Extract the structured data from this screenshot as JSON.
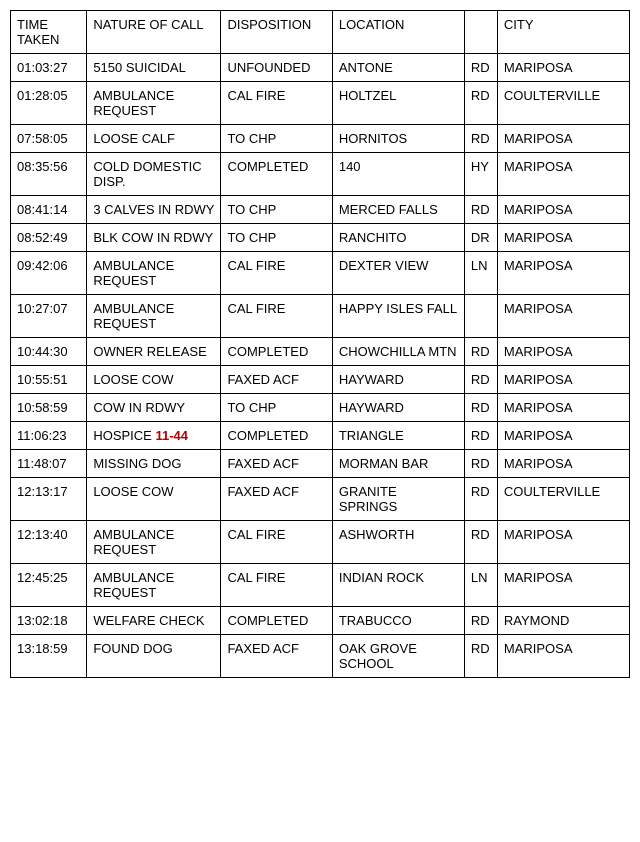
{
  "table": {
    "columns": [
      {
        "key": "time",
        "label": "TIME TAKEN",
        "class": "col-time"
      },
      {
        "key": "nature",
        "label": "NATURE OF CALL",
        "class": "col-nature"
      },
      {
        "key": "disposition",
        "label": "DISPOSITION",
        "class": "col-disp"
      },
      {
        "key": "location",
        "label": "LOCATION",
        "class": "col-loc"
      },
      {
        "key": "suffix",
        "label": "",
        "class": "col-suffix"
      },
      {
        "key": "city",
        "label": "CITY",
        "class": "col-city"
      }
    ],
    "rows": [
      {
        "time": "01:03:27",
        "nature": "5150 SUICIDAL",
        "disposition": "UNFOUNDED",
        "location": "ANTONE",
        "suffix": "RD",
        "city": "MARIPOSA"
      },
      {
        "time": "01:28:05",
        "nature": "AMBULANCE REQUEST",
        "disposition": "CAL FIRE",
        "location": "HOLTZEL",
        "suffix": "RD",
        "city": "COULTERVILLE"
      },
      {
        "time": "07:58:05",
        "nature": "LOOSE CALF",
        "disposition": "TO CHP",
        "location": "HORNITOS",
        "suffix": "RD",
        "city": "MARIPOSA"
      },
      {
        "time": "08:35:56",
        "nature": "COLD DOMESTIC DISP.",
        "disposition": "COMPLETED",
        "location": "140",
        "suffix": "HY",
        "city": "MARIPOSA"
      },
      {
        "time": "08:41:14",
        "nature": "3 CALVES IN RDWY",
        "disposition": "TO CHP",
        "location": "MERCED FALLS",
        "suffix": "RD",
        "city": "MARIPOSA"
      },
      {
        "time": "08:52:49",
        "nature": "BLK COW IN RDWY",
        "disposition": "TO CHP",
        "location": "RANCHITO",
        "suffix": "DR",
        "city": "MARIPOSA"
      },
      {
        "time": "09:42:06",
        "nature": "AMBULANCE REQUEST",
        "disposition": "CAL FIRE",
        "location": "DEXTER VIEW",
        "suffix": "LN",
        "city": "MARIPOSA"
      },
      {
        "time": "10:27:07",
        "nature": "AMBULANCE REQUEST",
        "disposition": "CAL FIRE",
        "location": "HAPPY ISLES FALL",
        "suffix": "",
        "city": "MARIPOSA"
      },
      {
        "time": "10:44:30",
        "nature": "OWNER RELEASE",
        "disposition": "COMPLETED",
        "location": "CHOWCHILLA MTN",
        "suffix": "RD",
        "city": "MARIPOSA"
      },
      {
        "time": "10:55:51",
        "nature": "LOOSE COW",
        "disposition": "FAXED ACF",
        "location": "HAYWARD",
        "suffix": "RD",
        "city": "MARIPOSA"
      },
      {
        "time": "10:58:59",
        "nature": "COW IN RDWY",
        "disposition": "TO CHP",
        "location": "HAYWARD",
        "suffix": "RD",
        "city": "MARIPOSA"
      },
      {
        "time": "11:06:23",
        "nature": "HOSPICE ",
        "nature_highlight": "11-44",
        "disposition": "COMPLETED",
        "location": "TRIANGLE",
        "suffix": "RD",
        "city": "MARIPOSA"
      },
      {
        "time": "11:48:07",
        "nature": "MISSING DOG",
        "disposition": "FAXED ACF",
        "location": "MORMAN BAR",
        "suffix": "RD",
        "city": "MARIPOSA"
      },
      {
        "time": "12:13:17",
        "nature": "LOOSE COW",
        "disposition": "FAXED ACF",
        "location": "GRANITE SPRINGS",
        "suffix": "RD",
        "city": "COULTERVILLE"
      },
      {
        "time": "12:13:40",
        "nature": "AMBULANCE REQUEST",
        "disposition": "CAL FIRE",
        "location": "ASHWORTH",
        "suffix": "RD",
        "city": "MARIPOSA"
      },
      {
        "time": "12:45:25",
        "nature": "AMBULANCE REQUEST",
        "disposition": "CAL FIRE",
        "location": "INDIAN ROCK",
        "suffix": "LN",
        "city": "MARIPOSA"
      },
      {
        "time": "13:02:18",
        "nature": "WELFARE CHECK",
        "disposition": "COMPLETED",
        "location": "TRABUCCO",
        "suffix": "RD",
        "city": "RAYMOND"
      },
      {
        "time": "13:18:59",
        "nature": "FOUND DOG",
        "disposition": "FAXED ACF",
        "location": "OAK GROVE SCHOOL",
        "suffix": "RD",
        "city": "MARIPOSA"
      }
    ],
    "highlight_color": "#b30000",
    "border_color": "#000000",
    "background_color": "#ffffff",
    "font_size": 13
  }
}
